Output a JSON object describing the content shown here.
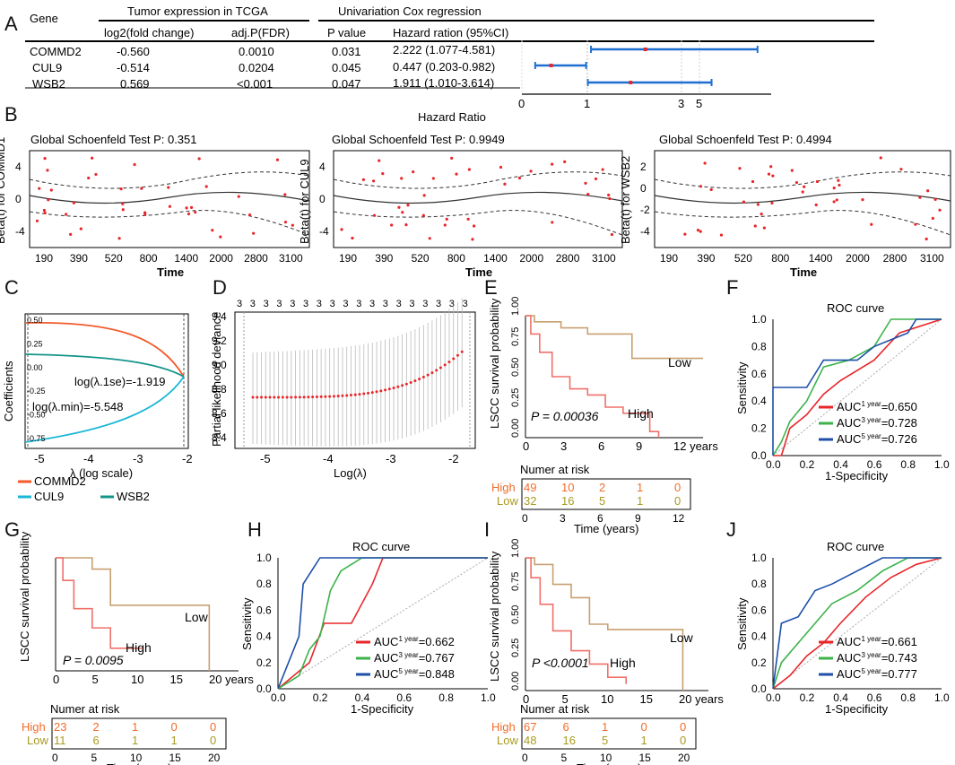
{
  "panels": {
    "A": "A",
    "B": "B",
    "C": "C",
    "D": "D",
    "E": "E",
    "F": "F",
    "G": "G",
    "H": "H",
    "I": "I",
    "J": "J"
  },
  "tableA": {
    "gene_header": "Gene",
    "tcga_header": "Tumor expression in TCGA",
    "cox_header": "Univariation Cox regression",
    "col_logfc": "log2(fold change)",
    "col_fdr": "adj.P(FDR)",
    "col_p": "P value",
    "col_hr": "Hazard ration (95%CI)",
    "rows": [
      {
        "gene": "COMMD2",
        "logfc": "-0.560",
        "fdr": "0.0010",
        "p": "0.031",
        "hr": "2.222 (1.077-4.581)"
      },
      {
        "gene": "CUL9",
        "logfc": "-0.514",
        "fdr": "0.0204",
        "p": "0.045",
        "hr": "0.447 (0.203-0.982)"
      },
      {
        "gene": "WSB2",
        "logfc": "0.569",
        "fdr": "<0.001",
        "p": "0.047",
        "hr": "1.911 (1.010-3.614)"
      }
    ]
  },
  "chart_data": [
    {
      "id": "A_forest",
      "type": "scatter",
      "xlabel": "Hazard Ratio",
      "ticks": [
        "0",
        "1",
        "3",
        "5"
      ],
      "series": [
        {
          "name": "COMMD2",
          "hr": 2.222,
          "lo": 1.077,
          "hi": 4.581
        },
        {
          "name": "CUL9",
          "hr": 0.447,
          "lo": 0.203,
          "hi": 0.982
        },
        {
          "name": "WSB2",
          "hr": 1.911,
          "lo": 1.01,
          "hi": 3.614
        }
      ]
    },
    {
      "id": "B1",
      "type": "scatter",
      "title": "Global Schoenfeld Test P: 0.351",
      "ylabel": "Beta(t) for COMMD1",
      "xlabel": "Time",
      "xticks": [
        "190",
        "390",
        "520",
        "800",
        "1400",
        "2000",
        "2800",
        "3100"
      ],
      "yticks": [
        "-4",
        "0",
        "4"
      ]
    },
    {
      "id": "B2",
      "type": "scatter",
      "title": "Global Schoenfeld Test P: 0.9949",
      "ylabel": "Beta(t) for CUL9",
      "xlabel": "Time",
      "xticks": [
        "190",
        "390",
        "520",
        "800",
        "1400",
        "2000",
        "2800",
        "3100"
      ],
      "yticks": [
        "-4",
        "0",
        "4"
      ]
    },
    {
      "id": "B3",
      "type": "scatter",
      "title": "Global Schoenfeld Test P: 0.4994",
      "ylabel": "Beta(t) for WSB2",
      "xlabel": "Time",
      "xticks": [
        "190",
        "390",
        "520",
        "800",
        "1400",
        "2000",
        "2800",
        "3100"
      ],
      "yticks": [
        "-4",
        "-2",
        "0",
        "2"
      ]
    },
    {
      "id": "C",
      "type": "line",
      "xlabel": "λ (log scale)",
      "ylabel": "Coefficients",
      "xticks": [
        "-5",
        "-4",
        "-3",
        "-2"
      ],
      "yticks": [
        "-0.75",
        "-0.50",
        "-0.25",
        "0.00",
        "0.25",
        "0.50"
      ],
      "annotations": [
        "log(λ.1se)=-1.919",
        "log(λ.min)=-5.548"
      ],
      "legend": [
        {
          "name": "COMMD2",
          "color": "#f15a29"
        },
        {
          "name": "CUL9",
          "color": "#1ab7d6"
        },
        {
          "name": "WSB2",
          "color": "#14958a"
        }
      ]
    },
    {
      "id": "D",
      "type": "scatter",
      "xlabel": "Log(λ)",
      "ylabel": "Partial likelihood deviance",
      "xticks": [
        "-5",
        "-4",
        "-3",
        "-2"
      ],
      "yticks": [
        "8.4",
        "8.6",
        "8.8",
        "9.0",
        "9.2",
        "9.4"
      ],
      "top_label": "3"
    },
    {
      "id": "E",
      "type": "line",
      "ylabel": "LSCC survival probability",
      "xlabel": "Time (years)",
      "xticks": [
        "0",
        "3",
        "6",
        "9",
        "12 years"
      ],
      "yticks": [
        "0.00",
        "0.25",
        "0.50",
        "0.75",
        "1.00"
      ],
      "pvalue": "P = 0.00036",
      "labels": [
        "Low",
        "High"
      ],
      "risk_title": "Numer at risk",
      "risk_high": [
        "49",
        "10",
        "2",
        "1",
        "0"
      ],
      "risk_low": [
        "32",
        "16",
        "5",
        "1",
        "0"
      ],
      "risk_xticks": [
        "0",
        "3",
        "6",
        "9",
        "12"
      ],
      "risk_groups": [
        "High",
        "Low"
      ]
    },
    {
      "id": "F",
      "type": "line",
      "title": "ROC curve",
      "xlabel": "1-Specificity",
      "ylabel": "Sensitivity",
      "ticks": [
        "0.0",
        "0.2",
        "0.4",
        "0.6",
        "0.8",
        "1.0"
      ],
      "auc": [
        {
          "label": "AUC",
          "sup": "1 year",
          "value": "=0.650",
          "color": "#e8262a"
        },
        {
          "label": "AUC",
          "sup": "3 year",
          "value": "=0.728",
          "color": "#3bb34a"
        },
        {
          "label": "AUC",
          "sup": "5 year",
          "value": "=0.726",
          "color": "#1d4fa8"
        }
      ]
    },
    {
      "id": "G",
      "type": "line",
      "ylabel": "LSCC survival probability",
      "xlabel": "Time (years)",
      "xticks": [
        "0",
        "5",
        "10",
        "15",
        "20 years"
      ],
      "pvalue": "P = 0.0095",
      "labels": [
        "Low",
        "High"
      ],
      "risk_title": "Numer at risk",
      "risk_high": [
        "23",
        "2",
        "1",
        "0",
        "0"
      ],
      "risk_low": [
        "11",
        "6",
        "1",
        "1",
        "0"
      ],
      "risk_xticks": [
        "0",
        "5",
        "10",
        "15",
        "20"
      ],
      "risk_groups": [
        "High",
        "Low"
      ]
    },
    {
      "id": "H",
      "type": "line",
      "title": "ROC curve",
      "xlabel": "1-Specificity",
      "ylabel": "Sensitivity",
      "ticks": [
        "0.0",
        "0.2",
        "0.4",
        "0.6",
        "0.8",
        "1.0"
      ],
      "auc": [
        {
          "label": "AUC",
          "sup": "1 year",
          "value": "=0.662",
          "color": "#e8262a"
        },
        {
          "label": "AUC",
          "sup": "3 year",
          "value": "=0.767",
          "color": "#3bb34a"
        },
        {
          "label": "AUC",
          "sup": "5 year",
          "value": "=0.848",
          "color": "#1d4fa8"
        }
      ]
    },
    {
      "id": "I",
      "type": "line",
      "ylabel": "LSCC survival probability",
      "xlabel": "Time (years)",
      "xticks": [
        "0",
        "5",
        "10",
        "15",
        "20 years"
      ],
      "yticks": [
        "0.00",
        "0.25",
        "0.50",
        "0.75",
        "1.00"
      ],
      "pvalue": "P <0.0001",
      "labels": [
        "Low",
        "High"
      ],
      "risk_title": "Numer at risk",
      "risk_high": [
        "67",
        "6",
        "1",
        "0",
        "0"
      ],
      "risk_low": [
        "48",
        "16",
        "5",
        "1",
        "0"
      ],
      "risk_xticks": [
        "0",
        "5",
        "10",
        "15",
        "20"
      ],
      "risk_groups": [
        "High",
        "Low"
      ]
    },
    {
      "id": "J",
      "type": "line",
      "title": "ROC curve",
      "xlabel": "1-Specificity",
      "ylabel": "Sensitivity",
      "ticks": [
        "0.0",
        "0.2",
        "0.4",
        "0.6",
        "0.8",
        "1.0"
      ],
      "auc": [
        {
          "label": "AUC",
          "sup": "1 year",
          "value": "=0.661",
          "color": "#e8262a"
        },
        {
          "label": "AUC",
          "sup": "3 year",
          "value": "=0.743",
          "color": "#3bb34a"
        },
        {
          "label": "AUC",
          "sup": "5 year",
          "value": "=0.777",
          "color": "#1d4fa8"
        }
      ]
    }
  ]
}
